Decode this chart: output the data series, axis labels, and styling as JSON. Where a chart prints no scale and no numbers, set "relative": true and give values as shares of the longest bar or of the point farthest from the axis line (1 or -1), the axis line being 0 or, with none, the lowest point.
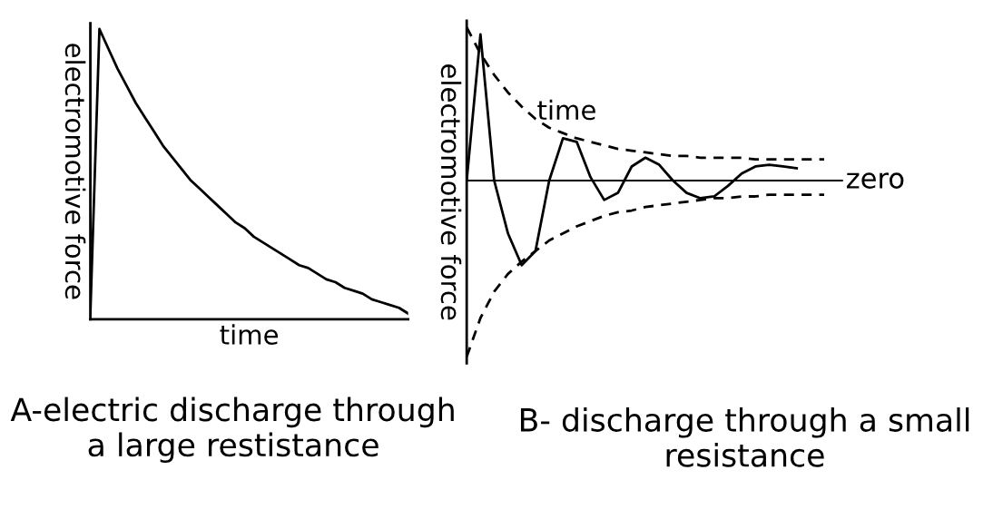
{
  "chart_data": [
    {
      "type": "line",
      "relative": true,
      "title": "A-electric discharge through a large restistance",
      "xlabel": "time",
      "ylabel": "electromotive force",
      "categories": [
        null,
        null,
        null,
        null,
        null,
        null,
        null,
        null,
        null,
        null,
        null,
        null,
        null,
        null,
        null,
        null,
        null,
        null,
        null,
        null,
        null,
        null,
        null,
        null,
        null,
        null,
        null,
        null,
        null,
        null,
        null,
        null,
        null,
        null,
        null,
        null
      ],
      "series": [
        {
          "color": "#000000",
          "values": [
            0,
            1.0,
            0.93,
            0.86,
            0.8,
            0.74,
            0.69,
            0.64,
            0.59,
            0.55,
            0.51,
            0.47,
            0.44,
            0.41,
            0.38,
            0.35,
            0.32,
            0.3,
            0.27,
            0.25,
            0.23,
            0.21,
            0.19,
            0.17,
            0.16,
            0.14,
            0.12,
            0.11,
            0.09,
            0.08,
            0.07,
            0.05,
            0.04,
            0.03,
            0.02,
            0.0
          ]
        }
      ],
      "legend": false
    },
    {
      "type": "line",
      "relative": true,
      "title": "B- discharge through a small resistance",
      "xlabel": "time",
      "ylabel": "electromotive force",
      "categories": [
        null,
        null,
        null,
        null,
        null,
        null,
        null,
        null,
        null,
        null,
        null,
        null,
        null,
        null,
        null,
        null,
        null,
        null,
        null,
        null,
        null,
        null,
        null,
        null,
        null,
        null,
        null
      ],
      "series": [
        {
          "color": "#000000",
          "line_style": "solid",
          "values": [
            0,
            0.83,
            0.0,
            -0.3,
            -0.48,
            -0.4,
            0.0,
            0.24,
            0.22,
            0.02,
            -0.11,
            -0.07,
            0.08,
            0.13,
            0.09,
            0.0,
            -0.07,
            -0.1,
            -0.09,
            -0.03,
            0.04,
            0.08,
            0.09,
            0.08,
            0.07,
            null,
            null
          ]
        },
        {
          "color": "#000000",
          "line_style": "dashed",
          "values": [
            0.87,
            0.72,
            0.6,
            0.5,
            0.42,
            0.35,
            0.3,
            0.27,
            0.24,
            0.22,
            0.2,
            0.18,
            0.17,
            0.16,
            0.15,
            0.14,
            0.14,
            0.13,
            0.13,
            0.13,
            0.13,
            0.12,
            0.12,
            0.12,
            0.12,
            0.12,
            0.12
          ]
        },
        {
          "color": "#000000",
          "line_style": "dashed",
          "values": [
            -1,
            -0.78,
            -0.63,
            -0.53,
            -0.46,
            -0.4,
            -0.34,
            -0.3,
            -0.26,
            -0.23,
            -0.2,
            -0.18,
            -0.17,
            -0.15,
            -0.14,
            -0.13,
            -0.12,
            -0.11,
            -0.1,
            -0.1,
            -0.09,
            -0.09,
            -0.08,
            -0.08,
            -0.08,
            -0.08,
            -0.08
          ]
        }
      ],
      "ref_lines": [
        {
          "axis": "y",
          "value": 0,
          "label": "zero"
        }
      ],
      "legend": false
    }
  ]
}
